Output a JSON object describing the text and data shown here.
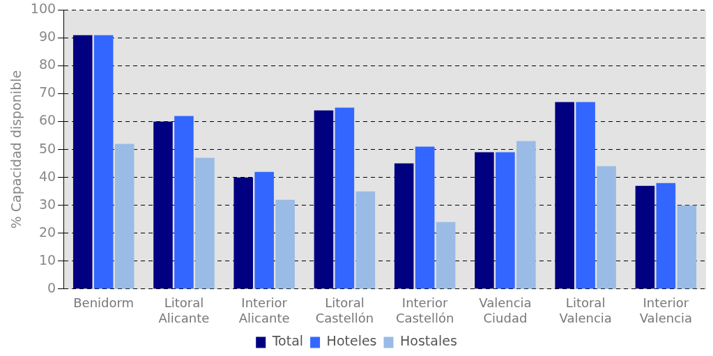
{
  "chart_data": {
    "type": "bar",
    "ylabel": "% Capacidad disponible",
    "categories": [
      "Benidorm",
      "Litoral Alicante",
      "Interior Alicante",
      "Litoral Castellón",
      "Interior Castellón",
      "Valencia Ciudad",
      "Litoral Valencia",
      "Interior Valencia"
    ],
    "series": [
      {
        "name": "Total",
        "color": "#000080",
        "values": [
          91,
          60,
          40,
          64,
          45,
          49,
          67,
          37
        ]
      },
      {
        "name": "Hoteles",
        "color": "#3366ff",
        "values": [
          91,
          62,
          42,
          65,
          51,
          49,
          67,
          38
        ]
      },
      {
        "name": "Hostales",
        "color": "#99bbe6",
        "values": [
          52,
          47,
          32,
          35,
          24,
          53,
          44,
          30
        ]
      }
    ],
    "ylim": [
      0,
      100
    ],
    "yticks": [
      0,
      10,
      20,
      30,
      40,
      50,
      60,
      70,
      80,
      90,
      100
    ],
    "grid": "y",
    "legend": "bottom"
  }
}
